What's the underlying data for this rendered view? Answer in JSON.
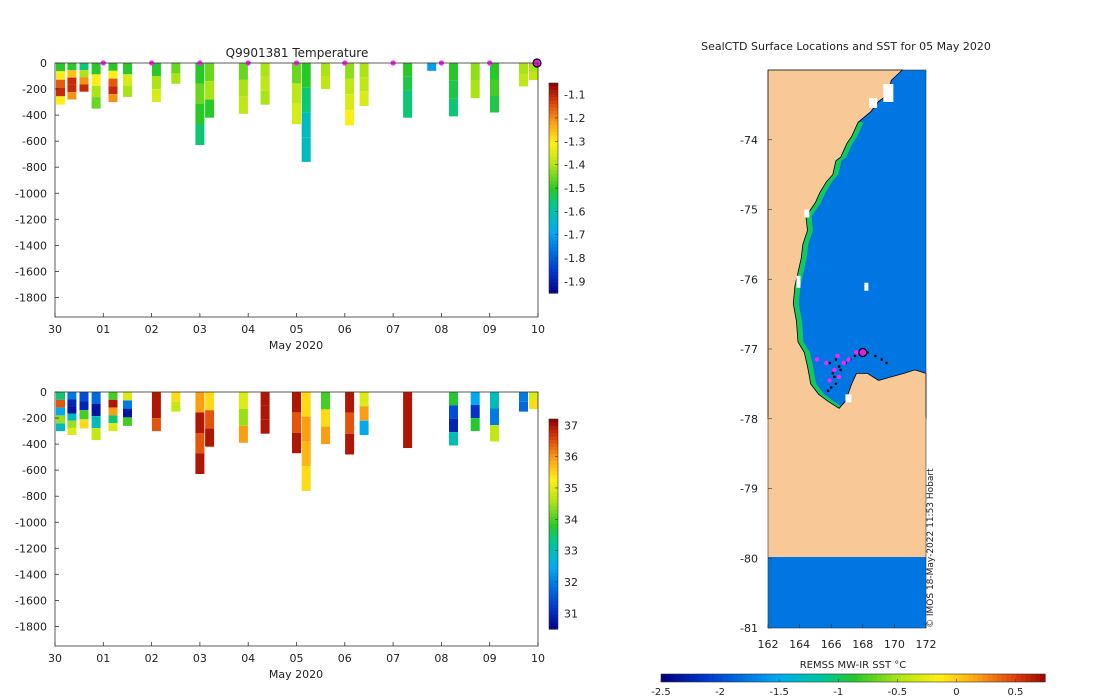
{
  "chart_data": [
    {
      "type": "heatmap",
      "title": "Q9901381  Temperature",
      "xlabel": "May 2020",
      "ylabel": "",
      "xlim": [
        0,
        10
      ],
      "ylim": [
        -1950,
        0
      ],
      "x_ticks": [
        0,
        1,
        2,
        3,
        4,
        5,
        6,
        7,
        8,
        9,
        10
      ],
      "x_tick_labels": [
        "30",
        "01",
        "02",
        "03",
        "04",
        "05",
        "06",
        "07",
        "08",
        "09",
        "10"
      ],
      "y_ticks": [
        0,
        -200,
        -400,
        -600,
        -800,
        -1000,
        -1200,
        -1400,
        -1600,
        -1800
      ],
      "y_tick_labels": [
        "0",
        "-200",
        "-400",
        "-600",
        "-800",
        "-1000",
        "-1200",
        "-1400",
        "-1600",
        "-1800"
      ],
      "colorbar": {
        "range": [
          -1.95,
          -1.05
        ],
        "ticks": [
          -1.1,
          -1.2,
          -1.3,
          -1.4,
          -1.5,
          -1.6,
          -1.7,
          -1.8,
          -1.9
        ],
        "tick_labels": [
          "-1.1",
          "-1.2",
          "-1.3",
          "-1.4",
          "-1.5",
          "-1.6",
          "-1.7",
          "-1.8",
          "-1.9"
        ]
      },
      "day_markers": [
        1,
        2,
        3,
        4,
        5,
        6,
        7,
        8,
        9
      ],
      "last_position": 10,
      "profiles": [
        {
          "x": 0.05,
          "depth": 320,
          "values": [
            -1.5,
            -1.3,
            -1.15,
            -1.1,
            -1.3
          ]
        },
        {
          "x": 0.35,
          "depth": 280,
          "values": [
            -1.5,
            -1.25,
            -1.1,
            -1.1,
            -1.2
          ]
        },
        {
          "x": 0.6,
          "depth": 220,
          "values": [
            -1.55,
            -1.4,
            -1.2,
            -1.1
          ]
        },
        {
          "x": 0.85,
          "depth": 350,
          "values": [
            -1.5,
            -1.3,
            -1.4,
            -1.45
          ]
        },
        {
          "x": 1.2,
          "depth": 300,
          "values": [
            -1.5,
            -1.3,
            -1.15,
            -1.1,
            -1.2
          ]
        },
        {
          "x": 1.5,
          "depth": 260,
          "values": [
            -1.5,
            -1.35,
            -1.4
          ]
        },
        {
          "x": 2.1,
          "depth": 300,
          "values": [
            -1.5,
            -1.4,
            -1.35
          ]
        },
        {
          "x": 2.5,
          "depth": 160,
          "values": [
            -1.45,
            -1.4
          ]
        },
        {
          "x": 3.0,
          "depth": 630,
          "values": [
            -1.5,
            -1.45,
            -1.5,
            -1.55
          ]
        },
        {
          "x": 3.2,
          "depth": 420,
          "values": [
            -1.45,
            -1.4,
            -1.5
          ]
        },
        {
          "x": 3.9,
          "depth": 390,
          "values": [
            -1.45,
            -1.4,
            -1.38
          ]
        },
        {
          "x": 4.35,
          "depth": 320,
          "values": [
            -1.4,
            -1.38,
            -1.4
          ]
        },
        {
          "x": 5.0,
          "depth": 470,
          "values": [
            -1.45,
            -1.38,
            -1.35
          ]
        },
        {
          "x": 5.2,
          "depth": 760,
          "values": [
            -1.5,
            -1.55,
            -1.62,
            -1.62
          ]
        },
        {
          "x": 5.6,
          "depth": 200,
          "values": [
            -1.4,
            -1.38
          ]
        },
        {
          "x": 6.1,
          "depth": 480,
          "values": [
            -1.42,
            -1.38,
            -1.35,
            -1.3
          ]
        },
        {
          "x": 6.4,
          "depth": 330,
          "values": [
            -1.4,
            -1.38,
            -1.35
          ]
        },
        {
          "x": 7.3,
          "depth": 420,
          "values": [
            -1.5,
            -1.52,
            -1.55,
            -1.55
          ]
        },
        {
          "x": 7.8,
          "depth": 60,
          "values": [
            -1.7
          ]
        },
        {
          "x": 8.25,
          "depth": 410,
          "values": [
            -1.5,
            -1.52,
            -1.55
          ]
        },
        {
          "x": 8.7,
          "depth": 270,
          "values": [
            -1.42,
            -1.4
          ]
        },
        {
          "x": 9.1,
          "depth": 380,
          "values": [
            -1.5,
            -1.48,
            -1.52
          ]
        },
        {
          "x": 9.7,
          "depth": 180,
          "values": [
            -1.4,
            -1.38
          ]
        },
        {
          "x": 10.0,
          "depth": 130,
          "values": [
            -1.4,
            -1.38
          ]
        }
      ]
    },
    {
      "type": "heatmap",
      "title": "",
      "xlabel": "May 2020",
      "ylabel": "",
      "xlim": [
        0,
        10
      ],
      "ylim": [
        -1950,
        0
      ],
      "x_ticks": [
        0,
        1,
        2,
        3,
        4,
        5,
        6,
        7,
        8,
        9,
        10
      ],
      "x_tick_labels": [
        "30",
        "01",
        "02",
        "03",
        "04",
        "05",
        "06",
        "07",
        "08",
        "09",
        "10"
      ],
      "y_ticks": [
        0,
        -200,
        -400,
        -600,
        -800,
        -1000,
        -1200,
        -1400,
        -1600,
        -1800
      ],
      "y_tick_labels": [
        "0",
        "-200",
        "-400",
        "-600",
        "-800",
        "-1000",
        "-1200",
        "-1400",
        "-1600",
        "-1800"
      ],
      "colorbar": {
        "range": [
          30.5,
          37.2
        ],
        "ticks": [
          37,
          36,
          35,
          34,
          33,
          32,
          31
        ],
        "tick_labels": [
          "37",
          "36",
          "35",
          "34",
          "33",
          "32",
          "31"
        ]
      },
      "profiles": [
        {
          "x": 0.05,
          "depth": 300,
          "values": [
            33.5,
            36.5,
            32.5,
            34.5,
            33
          ]
        },
        {
          "x": 0.35,
          "depth": 330,
          "values": [
            32,
            31,
            30.8,
            33,
            34.5,
            35
          ]
        },
        {
          "x": 0.6,
          "depth": 280,
          "values": [
            31.5,
            31,
            34,
            35.5
          ]
        },
        {
          "x": 0.85,
          "depth": 370,
          "values": [
            31.8,
            30.8,
            33,
            34.8
          ]
        },
        {
          "x": 1.2,
          "depth": 300,
          "values": [
            34,
            37,
            36,
            33.5,
            35
          ]
        },
        {
          "x": 1.5,
          "depth": 260,
          "values": [
            35,
            32,
            30.8,
            34
          ]
        },
        {
          "x": 2.1,
          "depth": 300,
          "values": [
            37,
            37,
            36.5
          ]
        },
        {
          "x": 2.5,
          "depth": 150,
          "values": [
            35.5,
            34.8
          ]
        },
        {
          "x": 3.0,
          "depth": 630,
          "values": [
            36,
            37,
            36.5,
            37
          ]
        },
        {
          "x": 3.2,
          "depth": 420,
          "values": [
            35.5,
            36.5,
            37
          ]
        },
        {
          "x": 3.9,
          "depth": 390,
          "values": [
            35,
            34.5,
            36
          ]
        },
        {
          "x": 4.35,
          "depth": 320,
          "values": [
            37,
            37,
            37
          ]
        },
        {
          "x": 5.0,
          "depth": 470,
          "values": [
            37,
            36.5,
            37
          ]
        },
        {
          "x": 5.2,
          "depth": 760,
          "values": [
            35.5,
            36,
            35.8,
            35.5
          ]
        },
        {
          "x": 5.6,
          "depth": 400,
          "values": [
            34,
            35.5,
            36
          ]
        },
        {
          "x": 6.1,
          "depth": 480,
          "values": [
            37,
            36.5,
            37
          ]
        },
        {
          "x": 6.4,
          "depth": 330,
          "values": [
            35,
            36,
            32.5
          ]
        },
        {
          "x": 7.3,
          "depth": 430,
          "values": [
            37,
            37,
            37,
            37
          ]
        },
        {
          "x": 8.25,
          "depth": 410,
          "values": [
            33.8,
            31.5,
            31,
            33
          ]
        },
        {
          "x": 8.7,
          "depth": 300,
          "values": [
            32.5,
            31.2,
            33.8
          ]
        },
        {
          "x": 9.1,
          "depth": 380,
          "values": [
            33,
            32,
            34.8
          ]
        },
        {
          "x": 9.7,
          "depth": 150,
          "values": [
            32,
            31.8
          ]
        },
        {
          "x": 10.0,
          "depth": 130,
          "values": [
            35,
            35.5
          ]
        }
      ]
    },
    {
      "type": "heatmap",
      "title": "SealCTD Surface Locations and SST for 05 May 2020",
      "xlabel": "",
      "ylabel": "",
      "xlim": [
        162,
        172
      ],
      "ylim": [
        -81,
        -73
      ],
      "x_ticks": [
        162,
        164,
        166,
        168,
        170,
        172
      ],
      "x_tick_labels": [
        "162",
        "164",
        "166",
        "168",
        "170",
        "172"
      ],
      "y_ticks": [
        -74,
        -75,
        -76,
        -77,
        -78,
        -79,
        -80,
        -81
      ],
      "y_tick_labels": [
        "-74",
        "-75",
        "-76",
        "-77",
        "-78",
        "-79",
        "-80",
        "-81"
      ],
      "colorbar": {
        "label": "REMSS MW-IR SST °C",
        "range": [
          -2.5,
          0.75
        ],
        "ticks": [
          -2.5,
          -2,
          -1.5,
          -1,
          -0.5,
          0,
          0.5
        ],
        "tick_labels": [
          "-2.5",
          "-2",
          "-1.5",
          "-1",
          "-0.5",
          "0",
          "0.5"
        ]
      },
      "credit": "© IMOS 18-May-2022 11:53 Hobart",
      "ocean_sst": -1.8,
      "coastal_sst": -1.0,
      "land_fill": "#f8c896",
      "coastline": [
        [
          170.5,
          -73.0
        ],
        [
          169.8,
          -73.15
        ],
        [
          169.6,
          -73.35
        ],
        [
          169.0,
          -73.45
        ],
        [
          168.5,
          -73.6
        ],
        [
          167.7,
          -73.75
        ],
        [
          167.3,
          -73.95
        ],
        [
          167.0,
          -74.05
        ],
        [
          166.6,
          -74.25
        ],
        [
          166.3,
          -74.3
        ],
        [
          166.1,
          -74.5
        ],
        [
          165.7,
          -74.6
        ],
        [
          165.3,
          -74.75
        ],
        [
          165.0,
          -74.9
        ],
        [
          164.7,
          -75.0
        ],
        [
          164.4,
          -75.1
        ],
        [
          164.5,
          -75.3
        ],
        [
          164.2,
          -75.5
        ],
        [
          164.1,
          -75.7
        ],
        [
          163.9,
          -75.9
        ],
        [
          163.7,
          -76.1
        ],
        [
          163.6,
          -76.35
        ],
        [
          163.8,
          -76.6
        ],
        [
          163.9,
          -76.9
        ],
        [
          164.3,
          -77.05
        ],
        [
          164.5,
          -77.25
        ],
        [
          164.7,
          -77.5
        ],
        [
          165.2,
          -77.65
        ],
        [
          165.8,
          -77.75
        ],
        [
          166.5,
          -77.85
        ],
        [
          166.9,
          -77.75
        ],
        [
          167.3,
          -77.5
        ],
        [
          167.6,
          -77.35
        ],
        [
          168.3,
          -77.35
        ],
        [
          169.0,
          -77.45
        ],
        [
          169.8,
          -77.4
        ],
        [
          170.6,
          -77.35
        ],
        [
          171.3,
          -77.3
        ],
        [
          172.0,
          -77.35
        ]
      ],
      "track": [
        [
          166.1,
          -77.35
        ],
        [
          165.9,
          -77.2
        ],
        [
          166.3,
          -77.15
        ],
        [
          166.5,
          -77.25
        ],
        [
          166.2,
          -77.4
        ],
        [
          166.0,
          -77.55
        ],
        [
          165.8,
          -77.6
        ],
        [
          166.3,
          -77.5
        ],
        [
          166.6,
          -77.3
        ],
        [
          166.9,
          -77.2
        ],
        [
          167.2,
          -77.15
        ],
        [
          167.5,
          -77.1
        ],
        [
          167.9,
          -77.05
        ],
        [
          168.3,
          -77.05
        ],
        [
          168.8,
          -77.1
        ],
        [
          169.2,
          -77.15
        ],
        [
          169.5,
          -77.2
        ]
      ],
      "daily_positions": [
        [
          165.1,
          -77.15
        ],
        [
          165.7,
          -77.2
        ],
        [
          166.2,
          -77.3
        ],
        [
          166.5,
          -77.4
        ],
        [
          165.9,
          -77.45
        ],
        [
          166.4,
          -77.1
        ],
        [
          166.8,
          -77.2
        ],
        [
          167.1,
          -77.15
        ],
        [
          167.6,
          -77.05
        ]
      ],
      "last_position": [
        168.0,
        -77.05
      ]
    }
  ]
}
